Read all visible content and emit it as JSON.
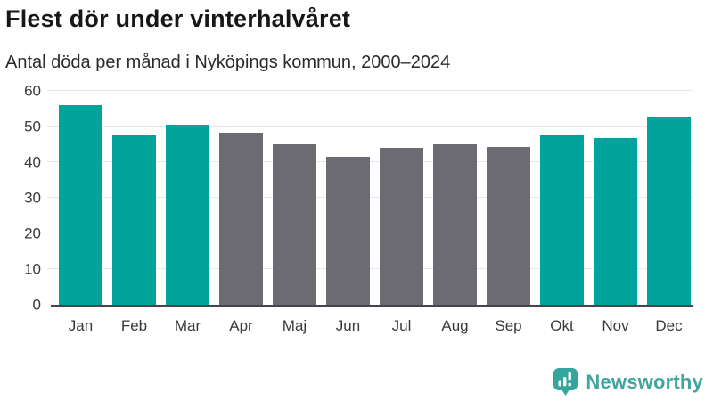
{
  "header": {
    "title": "Flest dör under vinterhalvåret",
    "subtitle": "Antal döda per månad i Nyköpings kommun, 2000–2024"
  },
  "chart_data": {
    "type": "bar",
    "title": "Flest dör under vinterhalvåret",
    "subtitle": "Antal döda per månad i Nyköpings kommun, 2000–2024",
    "categories": [
      "Jan",
      "Feb",
      "Mar",
      "Apr",
      "Maj",
      "Jun",
      "Jul",
      "Aug",
      "Sep",
      "Okt",
      "Nov",
      "Dec"
    ],
    "values": [
      56.1,
      47.5,
      50.6,
      48.2,
      44.9,
      41.6,
      43.9,
      44.9,
      44.3,
      47.4,
      46.8,
      52.8
    ],
    "highlighted": [
      true,
      true,
      true,
      false,
      false,
      false,
      false,
      false,
      false,
      true,
      true,
      true
    ],
    "colors": {
      "highlight": "#00a49a",
      "default": "#6d6b72"
    },
    "xlabel": "",
    "ylabel": "",
    "ylim": [
      0,
      60
    ],
    "yticks": [
      0,
      10,
      20,
      30,
      40,
      50,
      60
    ],
    "grid": "horizontal",
    "legend": "none"
  },
  "branding": {
    "logo_text": "Newsworthy",
    "logo_icon": "bar-chart-speech-bubble-icon",
    "logo_color": "#35a69e"
  }
}
